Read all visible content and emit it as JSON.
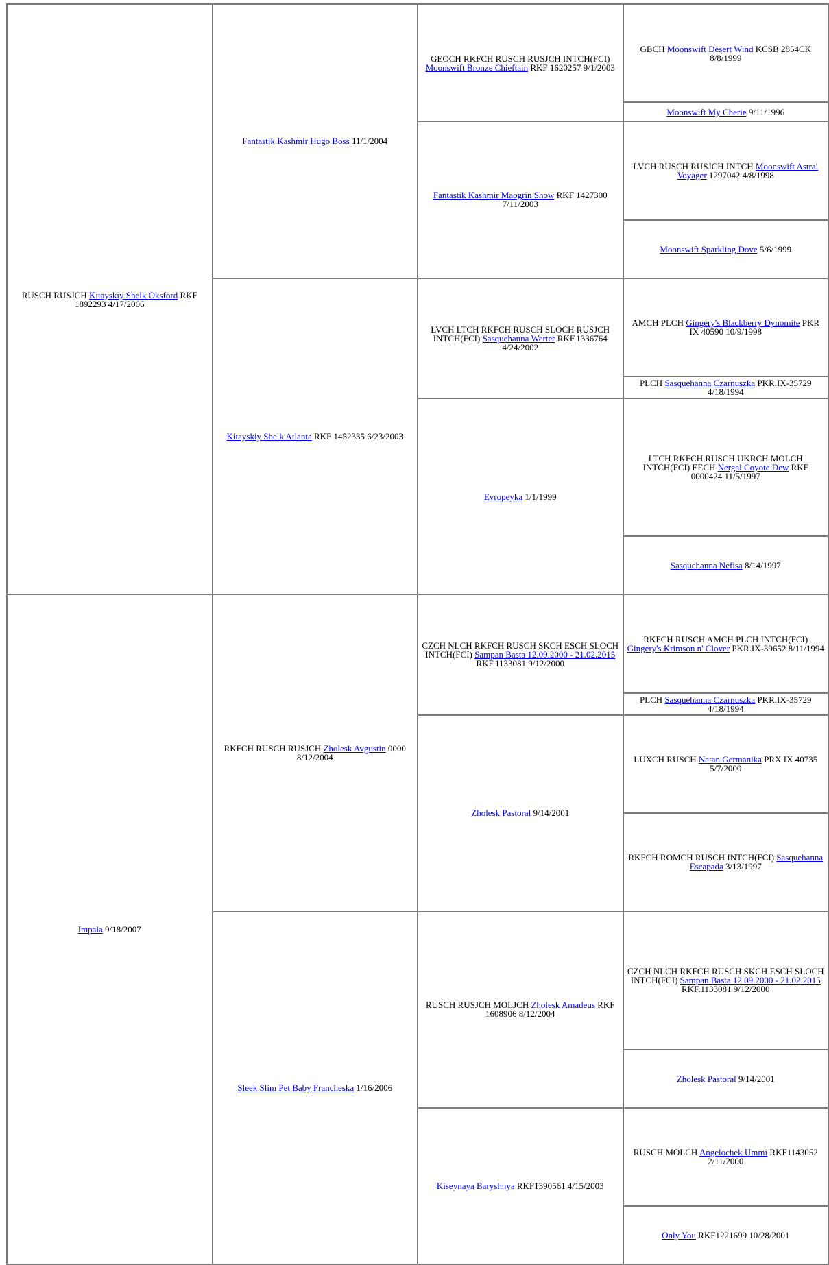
{
  "generations": [
    [
      {
        "titles": "RUSCH RUSJCH",
        "name": "Kitayskiy Shelk Oksford",
        "info": "RKF 1892293 4/17/2006",
        "photo": true
      },
      {
        "name": "Impala",
        "info": "9/18/2007",
        "photo": true
      }
    ],
    [
      {
        "name": "Fantastik Kashmir Hugo Boss",
        "info": "11/1/2004",
        "photo": true
      },
      {
        "name": "Kitayskiy Shelk Atlanta",
        "info": "RKF 1452335 6/23/2003",
        "photo": true
      },
      {
        "titles": "RKFCH RUSCH RUSJCH",
        "name": "Zholesk Avgustin",
        "info": "0000 8/12/2004",
        "photo": true
      },
      {
        "name": "Sleek Slim Pet Baby Francheska",
        "info": "1/16/2006",
        "photo": true
      }
    ],
    [
      {
        "titles": "GEOCH RKFCH RUSCH RUSJCH INTCH(FCI)",
        "name": "Moonswift Bronze Chieftain",
        "info": "RKF 1620257 9/1/2003",
        "photo": true
      },
      {
        "name": "Fantastik Kashmir Maogrin Show",
        "info": "RKF 1427300 7/11/2003",
        "photo": true
      },
      {
        "titles": "LVCH LTCH RKFCH RUSCH SLOCH RUSJCH INTCH(FCI)",
        "name": "Sasquehanna Werter",
        "info": "RKF.1336764 4/24/2002",
        "photo": true
      },
      {
        "name": "Evropeyka",
        "info": "1/1/1999",
        "photo": true
      },
      {
        "titles": "CZCH NLCH RKFCH RUSCH SKCH ESCH SLOCH INTCH(FCI)",
        "name": "Sampan Basta 12.09.2000 - 21.02.2015",
        "info": "RKF.1133081 9/12/2000",
        "photo": true
      },
      {
        "name": "Zholesk Pastoral",
        "info": "9/14/2001",
        "photo": true
      },
      {
        "titles": "RUSCH RUSJCH MOLJCH",
        "name": "Zholesk Amadeus",
        "info": "RKF 1608906 8/12/2004",
        "photo": true
      },
      {
        "name": "Kiseynaya Baryshnya",
        "info": "RKF1390561 4/15/2003",
        "photo": true
      }
    ],
    [
      {
        "titles": "GBCH",
        "name": "Moonswift Desert Wind",
        "info": "KCSB 2854CK 8/8/1999",
        "photo": true
      },
      {
        "name": "Moonswift My Cherie",
        "info": "9/11/1996",
        "photo": false
      },
      {
        "titles": "LVCH RUSCH RUSJCH INTCH",
        "name": "Moonswift Astral Voyager",
        "info": "1297042 4/8/1998",
        "photo": true
      },
      {
        "name": "Moonswift Sparkling Dove",
        "info": "5/6/1999",
        "photo": true
      },
      {
        "titles": "AMCH PLCH",
        "name": "Gingery's Blackberry Dynomite",
        "info": "PKR IX 40590 10/9/1998",
        "photo": true
      },
      {
        "titles": "PLCH",
        "name": "Sasquehanna Czarnuszka",
        "info": "PKR.IX-35729 4/18/1994",
        "photo": false
      },
      {
        "titles": "LTCH RKFCH RUSCH UKRCH MOLCH INTCH(FCI) EECH",
        "name": "Nergal Coyote Dew",
        "info": "RKF 0000424 11/5/1997",
        "photo": true
      },
      {
        "name": "Sasquehanna Nefisa",
        "info": "8/14/1997",
        "photo": true
      },
      {
        "titles": "RKFCH RUSCH AMCH PLCH INTCH(FCI)",
        "name": "Gingery's Krimson n' Clover",
        "info": "PKR.IX-39652 8/11/1994",
        "photo": true
      },
      {
        "titles": "PLCH",
        "name": "Sasquehanna Czarnuszka",
        "info": "PKR.IX-35729 4/18/1994",
        "photo": false
      },
      {
        "titles": "LUXCH RUSCH",
        "name": "Natan Germanika",
        "info": "PRX IX 40735 5/7/2000",
        "photo": true
      },
      {
        "titles": "RKFCH ROMCH RUSCH INTCH(FCI)",
        "name": "Sasquehanna Escapada",
        "info": "3/13/1997",
        "photo": true
      },
      {
        "titles": "CZCH NLCH RKFCH RUSCH SKCH ESCH SLOCH INTCH(FCI)",
        "name": "Sampan Basta 12.09.2000 - 21.02.2015",
        "info": "RKF.1133081 9/12/2000",
        "photo": true
      },
      {
        "name": "Zholesk Pastoral",
        "info": "9/14/2001",
        "photo": true
      },
      {
        "titles": "RUSCH MOLCH",
        "name": "Angelochek Ummi",
        "info": "RKF1143052 2/11/2000",
        "photo": true
      },
      {
        "name": "Only You",
        "info": "RKF1221699 10/28/2001",
        "photo": true
      }
    ]
  ]
}
